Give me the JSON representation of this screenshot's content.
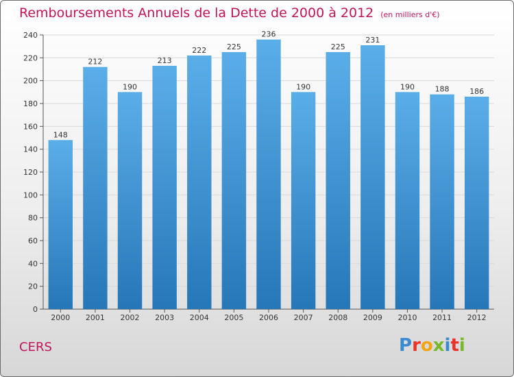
{
  "chart_data": {
    "type": "bar",
    "title": "Remboursements Annuels de la Dette de 2000 à 2012",
    "subtitle": "(en milliers d'€)",
    "categories": [
      "2000",
      "2001",
      "2002",
      "2003",
      "2004",
      "2005",
      "2006",
      "2007",
      "2008",
      "2009",
      "2010",
      "2011",
      "2012"
    ],
    "values": [
      148,
      212,
      190,
      213,
      222,
      225,
      236,
      190,
      225,
      231,
      190,
      188,
      186
    ],
    "ylim": [
      0,
      240
    ],
    "yticks": [
      0,
      20,
      40,
      60,
      80,
      100,
      120,
      140,
      160,
      180,
      200,
      220,
      240
    ],
    "grid": true,
    "bar_color_top": "#5aaee8",
    "bar_color_bottom": "#2677b8"
  },
  "commune": "CERS",
  "logo": {
    "letters": [
      "P",
      "r",
      "o",
      "x",
      "i",
      "t",
      "i"
    ],
    "colors": [
      "#3a8ad0",
      "#e8332a",
      "#f2a414",
      "#76b82a",
      "#3a8ad0",
      "#e8332a",
      "#76b82a"
    ]
  },
  "colors": {
    "title": "#c0135a",
    "grid": "#d9d9d9"
  }
}
